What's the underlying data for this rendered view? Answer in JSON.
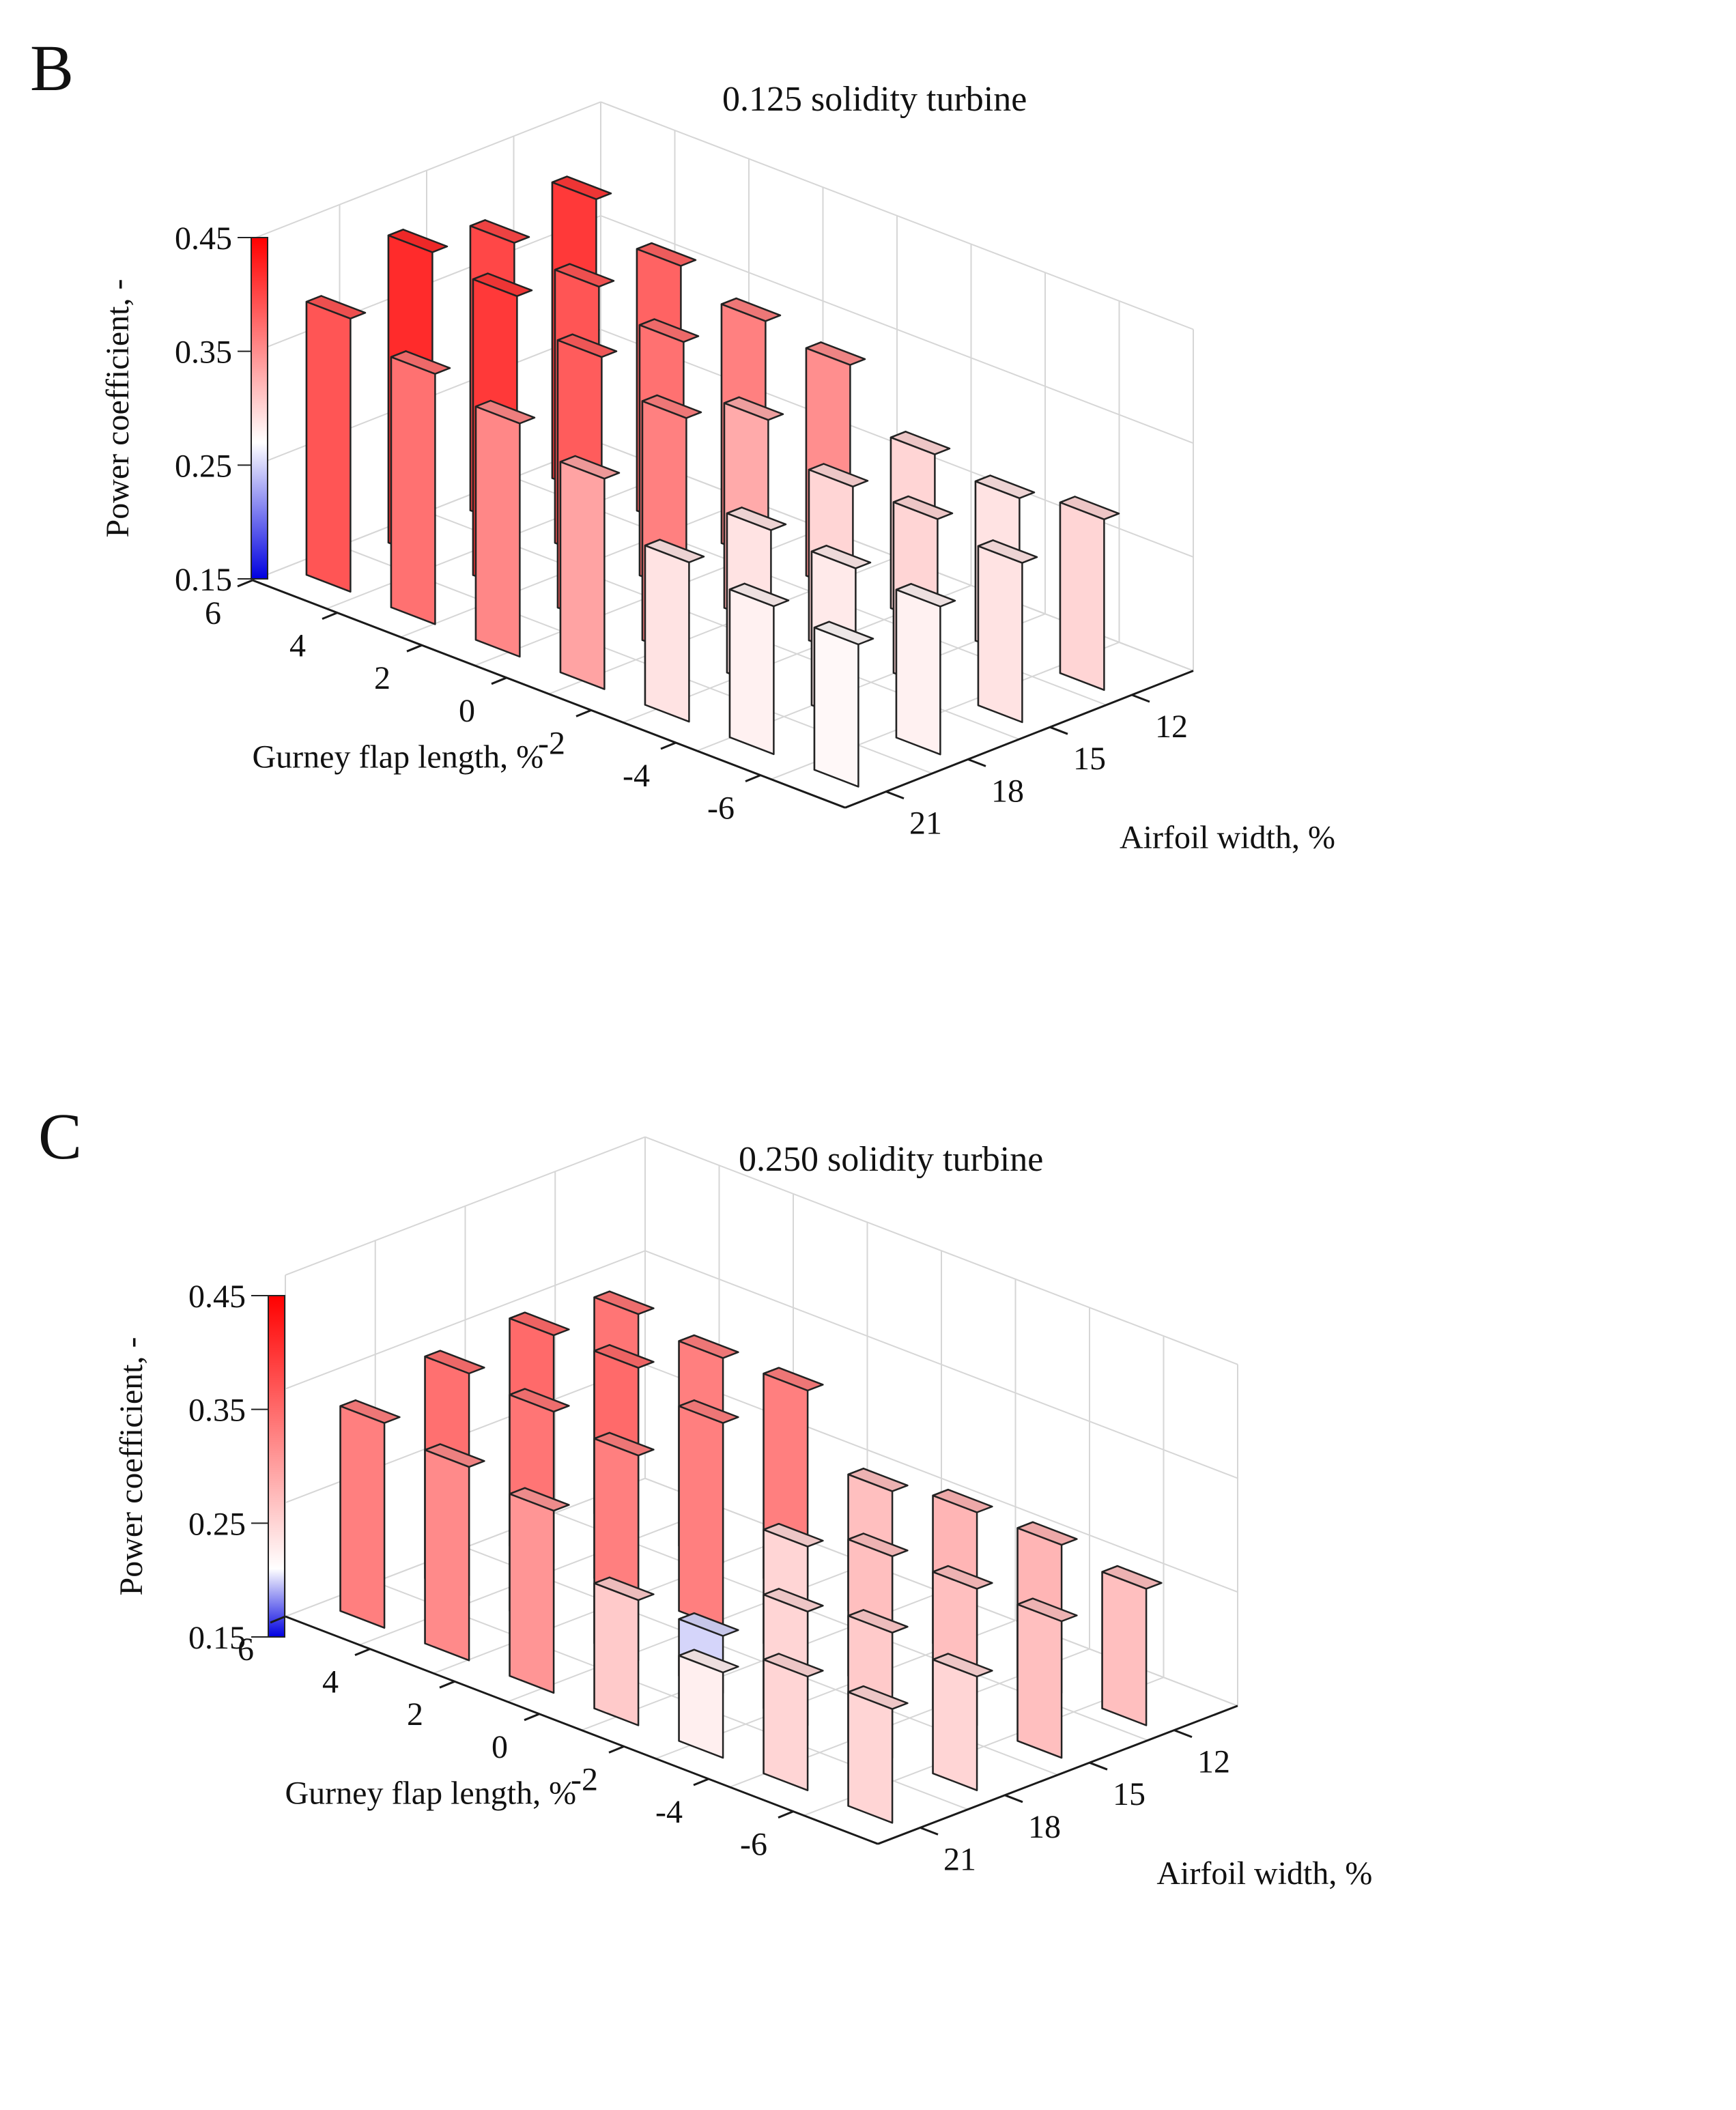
{
  "panels": [
    {
      "letter": "B",
      "title": "0.125 solidity turbine"
    },
    {
      "letter": "C",
      "title": "0.250 solidity turbine"
    }
  ],
  "chart_data": [
    {
      "type": "bar3d",
      "title": "0.125 solidity turbine",
      "xlabel": "Gurney flap length, %",
      "ylabel": "Airfoil width, %",
      "zlabel": "Power coefficient, -",
      "x_ticks": [
        6,
        4,
        2,
        0,
        -2,
        -4,
        -6
      ],
      "y_ticks": [
        21,
        18,
        15,
        12
      ],
      "colorbar": {
        "range": [
          0.15,
          0.45
        ],
        "ticks": [
          "0.45",
          "0.35",
          "0.25",
          "0.15"
        ],
        "colors": [
          "#0000e0",
          "#ffffff",
          "#ff0000"
        ],
        "white_at": 0.27
      },
      "bars": [
        {
          "gurney": 6,
          "width": 21,
          "cp": 0.39
        },
        {
          "gurney": 4,
          "width": 21,
          "cp": 0.37
        },
        {
          "gurney": 2,
          "width": 21,
          "cp": 0.355
        },
        {
          "gurney": 0,
          "width": 21,
          "cp": 0.335
        },
        {
          "gurney": -2,
          "width": 21,
          "cp": 0.29
        },
        {
          "gurney": -4,
          "width": 21,
          "cp": 0.28
        },
        {
          "gurney": -6,
          "width": 21,
          "cp": 0.275
        },
        {
          "gurney": 6,
          "width": 18,
          "cp": 0.42
        },
        {
          "gurney": 4,
          "width": 18,
          "cp": 0.41
        },
        {
          "gurney": 2,
          "width": 18,
          "cp": 0.385
        },
        {
          "gurney": 0,
          "width": 18,
          "cp": 0.36
        },
        {
          "gurney": -2,
          "width": 18,
          "cp": 0.29
        },
        {
          "gurney": -4,
          "width": 18,
          "cp": 0.285
        },
        {
          "gurney": -6,
          "width": 18,
          "cp": 0.28
        },
        {
          "gurney": 6,
          "width": 15,
          "cp": 0.4
        },
        {
          "gurney": 4,
          "width": 15,
          "cp": 0.39
        },
        {
          "gurney": 2,
          "width": 15,
          "cp": 0.37
        },
        {
          "gurney": 0,
          "width": 15,
          "cp": 0.33
        },
        {
          "gurney": -2,
          "width": 15,
          "cp": 0.3
        },
        {
          "gurney": -4,
          "width": 15,
          "cp": 0.3
        },
        {
          "gurney": -6,
          "width": 15,
          "cp": 0.29
        },
        {
          "gurney": 6,
          "width": 12,
          "cp": 0.41
        },
        {
          "gurney": 4,
          "width": 12,
          "cp": 0.38
        },
        {
          "gurney": 2,
          "width": 12,
          "cp": 0.36
        },
        {
          "gurney": 0,
          "width": 12,
          "cp": 0.35
        },
        {
          "gurney": -2,
          "width": 12,
          "cp": 0.3
        },
        {
          "gurney": -4,
          "width": 12,
          "cp": 0.29
        },
        {
          "gurney": -6,
          "width": 12,
          "cp": 0.3
        }
      ]
    },
    {
      "type": "bar3d",
      "title": "0.250 solidity turbine",
      "xlabel": "Gurney flap length, %",
      "ylabel": "Airfoil width, %",
      "zlabel": "Power coefficient, -",
      "x_ticks": [
        6,
        4,
        2,
        0,
        -2,
        -4,
        -6
      ],
      "y_ticks": [
        21,
        18,
        15,
        12
      ],
      "colorbar": {
        "range": [
          0.15,
          0.45
        ],
        "ticks": [
          "0.45",
          "0.35",
          "0.25",
          "0.15"
        ],
        "colors": [
          "#0000e0",
          "#ffffff",
          "#ff0000"
        ],
        "white_at": 0.21
      },
      "bars": [
        {
          "gurney": 6,
          "width": 21,
          "cp": 0.33
        },
        {
          "gurney": 4,
          "width": 21,
          "cp": 0.32
        },
        {
          "gurney": 2,
          "width": 21,
          "cp": 0.31
        },
        {
          "gurney": 0,
          "width": 21,
          "cp": 0.26
        },
        {
          "gurney": -2,
          "width": 21,
          "cp": 0.225
        },
        {
          "gurney": -4,
          "width": 21,
          "cp": 0.25
        },
        {
          "gurney": -6,
          "width": 21,
          "cp": 0.25
        },
        {
          "gurney": 6,
          "width": 18,
          "cp": 0.345
        },
        {
          "gurney": 4,
          "width": 18,
          "cp": 0.34
        },
        {
          "gurney": 2,
          "width": 18,
          "cp": 0.33
        },
        {
          "gurney": 0,
          "width": 18,
          "cp": 0.2
        },
        {
          "gurney": -2,
          "width": 18,
          "cp": 0.25
        },
        {
          "gurney": -4,
          "width": 18,
          "cp": 0.26
        },
        {
          "gurney": -6,
          "width": 18,
          "cp": 0.25
        },
        {
          "gurney": 6,
          "width": 15,
          "cp": 0.35
        },
        {
          "gurney": 4,
          "width": 15,
          "cp": 0.35
        },
        {
          "gurney": 2,
          "width": 15,
          "cp": 0.33
        },
        {
          "gurney": 0,
          "width": 15,
          "cp": 0.25
        },
        {
          "gurney": -2,
          "width": 15,
          "cp": 0.27
        },
        {
          "gurney": -4,
          "width": 15,
          "cp": 0.27
        },
        {
          "gurney": -6,
          "width": 15,
          "cp": 0.27
        },
        {
          "gurney": 6,
          "width": 12,
          "cp": 0.34
        },
        {
          "gurney": 4,
          "width": 12,
          "cp": 0.33
        },
        {
          "gurney": 2,
          "width": 12,
          "cp": 0.33
        },
        {
          "gurney": 0,
          "width": 12,
          "cp": 0.27
        },
        {
          "gurney": -2,
          "width": 12,
          "cp": 0.28
        },
        {
          "gurney": -4,
          "width": 12,
          "cp": 0.28
        },
        {
          "gurney": -6,
          "width": 12,
          "cp": 0.27
        }
      ]
    }
  ]
}
